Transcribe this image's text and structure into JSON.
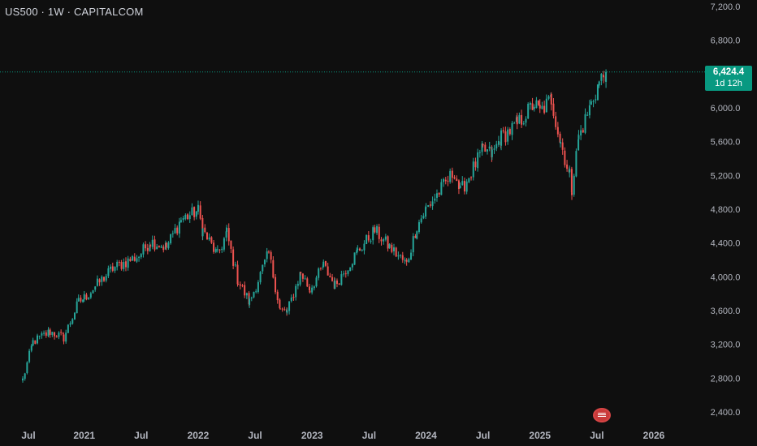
{
  "header": {
    "symbol_title": "US500 · 1W · CAPITALCOM"
  },
  "price_tag": {
    "value": "6,424.4",
    "countdown": "1d 12h"
  },
  "price_axis": {
    "labels": [
      "7,200.0",
      "6,800.0",
      "6,424.4",
      "6,000.0",
      "5,600.0",
      "5,200.0",
      "4,800.0",
      "4,400.0",
      "4,000.0",
      "3,600.0",
      "3,200.0",
      "2,800.0",
      "2,400.0"
    ]
  },
  "time_axis": {
    "labels": [
      "Jul",
      "2021",
      "Jul",
      "2022",
      "Jul",
      "2023",
      "Jul",
      "2024",
      "Jul",
      "2025",
      "Jul",
      "2026"
    ]
  },
  "colors": {
    "up": "#26a69a",
    "down": "#ef5350",
    "background": "#0f0f0f",
    "last_price_line": "#089981",
    "events_icon": "economic-calendar-flag-icon"
  },
  "chart_data": {
    "type": "candlestick",
    "title": "US500 · 1W · CAPITALCOM",
    "xlabel": "",
    "ylabel": "",
    "ylim": [
      2300,
      7300
    ],
    "xlim": [
      2020.45,
      2026.5
    ],
    "last_price": 6424.4,
    "grid": false,
    "anchors": [
      [
        2020.46,
        2780
      ],
      [
        2020.55,
        3230
      ],
      [
        2020.7,
        3350
      ],
      [
        2020.82,
        3280
      ],
      [
        2020.95,
        3700
      ],
      [
        2021.0,
        3750
      ],
      [
        2021.25,
        4100
      ],
      [
        2021.48,
        4250
      ],
      [
        2021.58,
        4420
      ],
      [
        2021.72,
        4350
      ],
      [
        2021.85,
        4680
      ],
      [
        2022.0,
        4780
      ],
      [
        2022.04,
        4550
      ],
      [
        2022.17,
        4250
      ],
      [
        2022.25,
        4520
      ],
      [
        2022.35,
        3950
      ],
      [
        2022.45,
        3700
      ],
      [
        2022.62,
        4280
      ],
      [
        2022.72,
        3600
      ],
      [
        2022.78,
        3580
      ],
      [
        2022.9,
        4050
      ],
      [
        2022.98,
        3850
      ],
      [
        2023.1,
        4130
      ],
      [
        2023.2,
        3900
      ],
      [
        2023.4,
        4300
      ],
      [
        2023.55,
        4550
      ],
      [
        2023.68,
        4350
      ],
      [
        2023.83,
        4150
      ],
      [
        2023.92,
        4600
      ],
      [
        2024.0,
        4800
      ],
      [
        2024.25,
        5250
      ],
      [
        2024.3,
        5000
      ],
      [
        2024.5,
        5500
      ],
      [
        2024.58,
        5450
      ],
      [
        2024.66,
        5650
      ],
      [
        2024.8,
        5800
      ],
      [
        2024.95,
        6050
      ],
      [
        2025.0,
        5950
      ],
      [
        2025.1,
        6100
      ],
      [
        2025.18,
        5600
      ],
      [
        2025.26,
        5200
      ],
      [
        2025.28,
        5050
      ],
      [
        2025.34,
        5650
      ],
      [
        2025.45,
        6050
      ],
      [
        2025.52,
        6300
      ],
      [
        2025.58,
        6424.4
      ]
    ]
  }
}
